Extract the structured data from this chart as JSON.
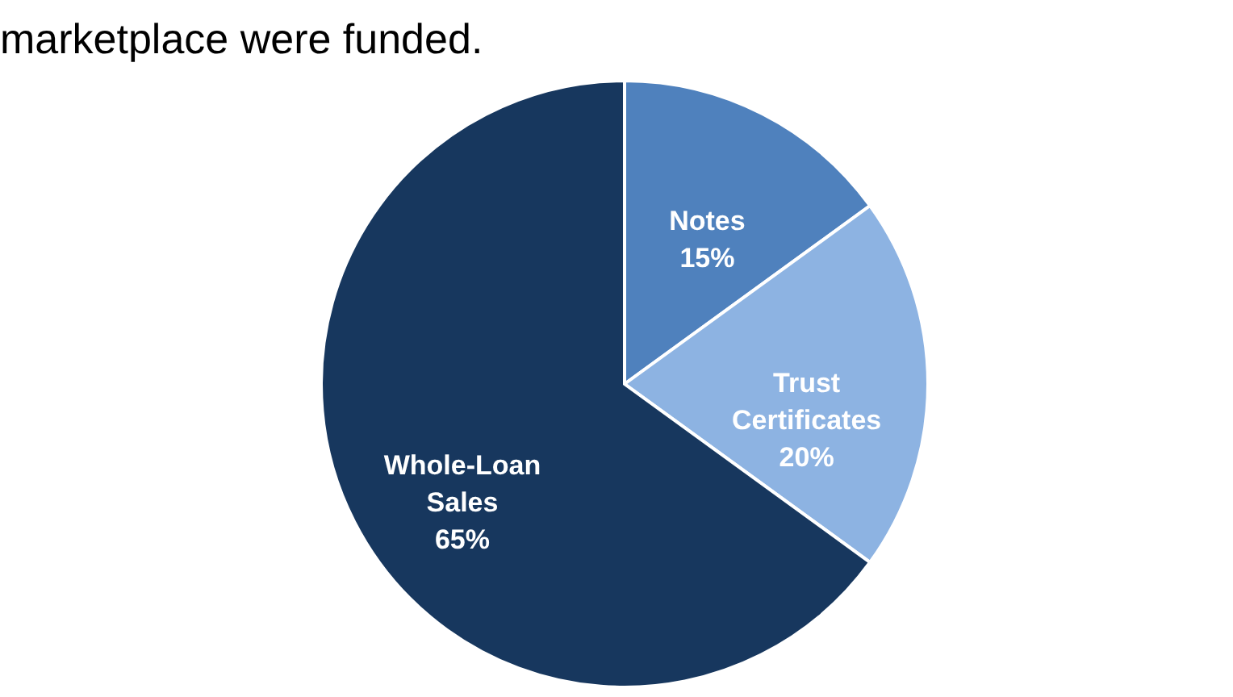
{
  "chart_data": {
    "type": "pie",
    "title": "marketplace were funded.",
    "categories": [
      "Notes",
      "Trust Certificates",
      "Whole-Loan Sales"
    ],
    "values": [
      15,
      20,
      65
    ],
    "colors": [
      "#4f81bd",
      "#8db3e2",
      "#17375e"
    ],
    "value_labels": [
      "15%",
      "20%",
      "65%"
    ],
    "legend": false
  }
}
